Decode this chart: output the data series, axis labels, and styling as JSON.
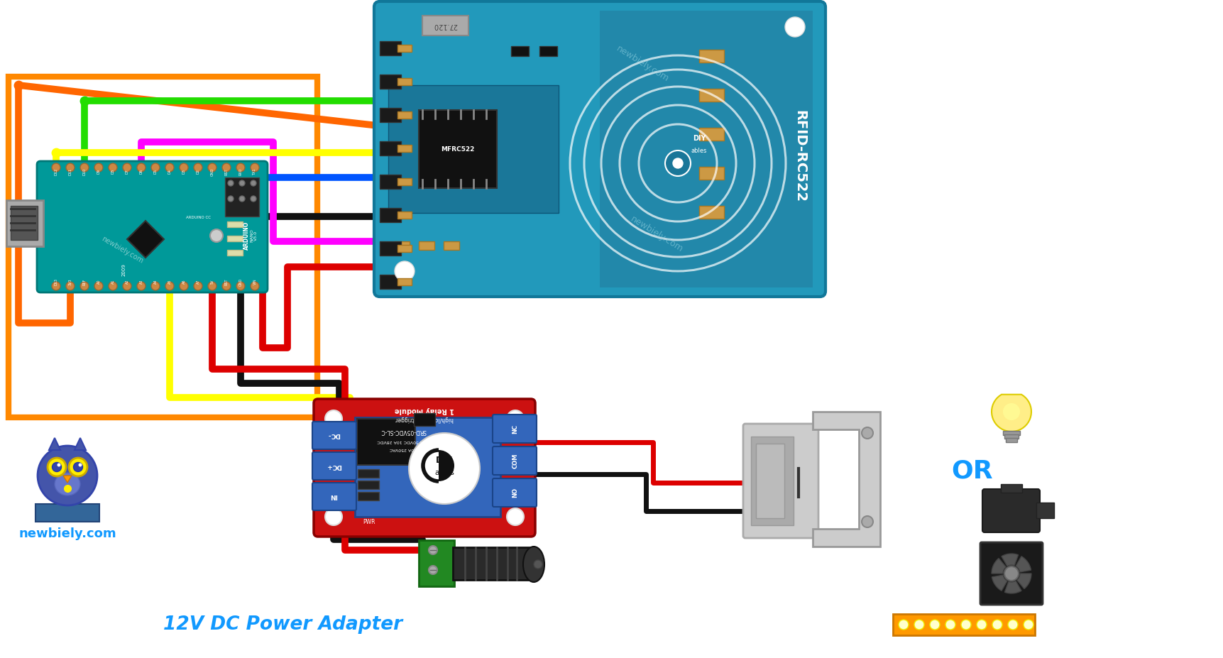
{
  "bg_color": "#ffffff",
  "text_12v": "12V DC Power Adapter",
  "text_12v_color": "#1199ff",
  "text_website": "newbiely.com",
  "text_or": "OR",
  "text_or_color": "#1199ff",
  "wire_green": "#22dd00",
  "wire_orange": "#ff6600",
  "wire_yellow": "#ffff00",
  "wire_blue": "#0055ff",
  "wire_magenta": "#ff00ff",
  "wire_black": "#111111",
  "wire_red": "#dd0000",
  "rfid_color": "#2299bb",
  "arduino_color": "#009999",
  "relay_red": "#cc1111",
  "relay_blue": "#3366bb",
  "orange_border": "#ff8800",
  "wire_lw": 7
}
